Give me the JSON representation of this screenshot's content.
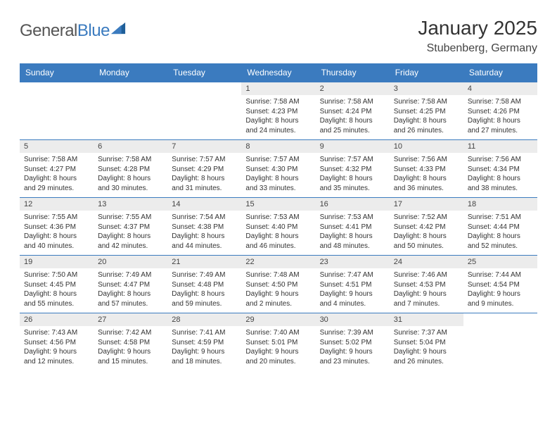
{
  "logo": {
    "text1": "General",
    "text2": "Blue",
    "color1": "#555555",
    "color2": "#3b7bbf"
  },
  "title": "January 2025",
  "location": "Stubenberg, Germany",
  "header_bg": "#3b7bbf",
  "header_fg": "#ffffff",
  "daynum_bg": "#ececec",
  "border_color": "#3b7bbf",
  "text_color": "#333333",
  "day_names": [
    "Sunday",
    "Monday",
    "Tuesday",
    "Wednesday",
    "Thursday",
    "Friday",
    "Saturday"
  ],
  "weeks": [
    [
      null,
      null,
      null,
      {
        "n": "1",
        "sr": "7:58 AM",
        "ss": "4:23 PM",
        "dh": "8",
        "dm": "24"
      },
      {
        "n": "2",
        "sr": "7:58 AM",
        "ss": "4:24 PM",
        "dh": "8",
        "dm": "25"
      },
      {
        "n": "3",
        "sr": "7:58 AM",
        "ss": "4:25 PM",
        "dh": "8",
        "dm": "26"
      },
      {
        "n": "4",
        "sr": "7:58 AM",
        "ss": "4:26 PM",
        "dh": "8",
        "dm": "27"
      }
    ],
    [
      {
        "n": "5",
        "sr": "7:58 AM",
        "ss": "4:27 PM",
        "dh": "8",
        "dm": "29"
      },
      {
        "n": "6",
        "sr": "7:58 AM",
        "ss": "4:28 PM",
        "dh": "8",
        "dm": "30"
      },
      {
        "n": "7",
        "sr": "7:57 AM",
        "ss": "4:29 PM",
        "dh": "8",
        "dm": "31"
      },
      {
        "n": "8",
        "sr": "7:57 AM",
        "ss": "4:30 PM",
        "dh": "8",
        "dm": "33"
      },
      {
        "n": "9",
        "sr": "7:57 AM",
        "ss": "4:32 PM",
        "dh": "8",
        "dm": "35"
      },
      {
        "n": "10",
        "sr": "7:56 AM",
        "ss": "4:33 PM",
        "dh": "8",
        "dm": "36"
      },
      {
        "n": "11",
        "sr": "7:56 AM",
        "ss": "4:34 PM",
        "dh": "8",
        "dm": "38"
      }
    ],
    [
      {
        "n": "12",
        "sr": "7:55 AM",
        "ss": "4:36 PM",
        "dh": "8",
        "dm": "40"
      },
      {
        "n": "13",
        "sr": "7:55 AM",
        "ss": "4:37 PM",
        "dh": "8",
        "dm": "42"
      },
      {
        "n": "14",
        "sr": "7:54 AM",
        "ss": "4:38 PM",
        "dh": "8",
        "dm": "44"
      },
      {
        "n": "15",
        "sr": "7:53 AM",
        "ss": "4:40 PM",
        "dh": "8",
        "dm": "46"
      },
      {
        "n": "16",
        "sr": "7:53 AM",
        "ss": "4:41 PM",
        "dh": "8",
        "dm": "48"
      },
      {
        "n": "17",
        "sr": "7:52 AM",
        "ss": "4:42 PM",
        "dh": "8",
        "dm": "50"
      },
      {
        "n": "18",
        "sr": "7:51 AM",
        "ss": "4:44 PM",
        "dh": "8",
        "dm": "52"
      }
    ],
    [
      {
        "n": "19",
        "sr": "7:50 AM",
        "ss": "4:45 PM",
        "dh": "8",
        "dm": "55"
      },
      {
        "n": "20",
        "sr": "7:49 AM",
        "ss": "4:47 PM",
        "dh": "8",
        "dm": "57"
      },
      {
        "n": "21",
        "sr": "7:49 AM",
        "ss": "4:48 PM",
        "dh": "8",
        "dm": "59"
      },
      {
        "n": "22",
        "sr": "7:48 AM",
        "ss": "4:50 PM",
        "dh": "9",
        "dm": "2"
      },
      {
        "n": "23",
        "sr": "7:47 AM",
        "ss": "4:51 PM",
        "dh": "9",
        "dm": "4"
      },
      {
        "n": "24",
        "sr": "7:46 AM",
        "ss": "4:53 PM",
        "dh": "9",
        "dm": "7"
      },
      {
        "n": "25",
        "sr": "7:44 AM",
        "ss": "4:54 PM",
        "dh": "9",
        "dm": "9"
      }
    ],
    [
      {
        "n": "26",
        "sr": "7:43 AM",
        "ss": "4:56 PM",
        "dh": "9",
        "dm": "12"
      },
      {
        "n": "27",
        "sr": "7:42 AM",
        "ss": "4:58 PM",
        "dh": "9",
        "dm": "15"
      },
      {
        "n": "28",
        "sr": "7:41 AM",
        "ss": "4:59 PM",
        "dh": "9",
        "dm": "18"
      },
      {
        "n": "29",
        "sr": "7:40 AM",
        "ss": "5:01 PM",
        "dh": "9",
        "dm": "20"
      },
      {
        "n": "30",
        "sr": "7:39 AM",
        "ss": "5:02 PM",
        "dh": "9",
        "dm": "23"
      },
      {
        "n": "31",
        "sr": "7:37 AM",
        "ss": "5:04 PM",
        "dh": "9",
        "dm": "26"
      },
      null
    ]
  ]
}
